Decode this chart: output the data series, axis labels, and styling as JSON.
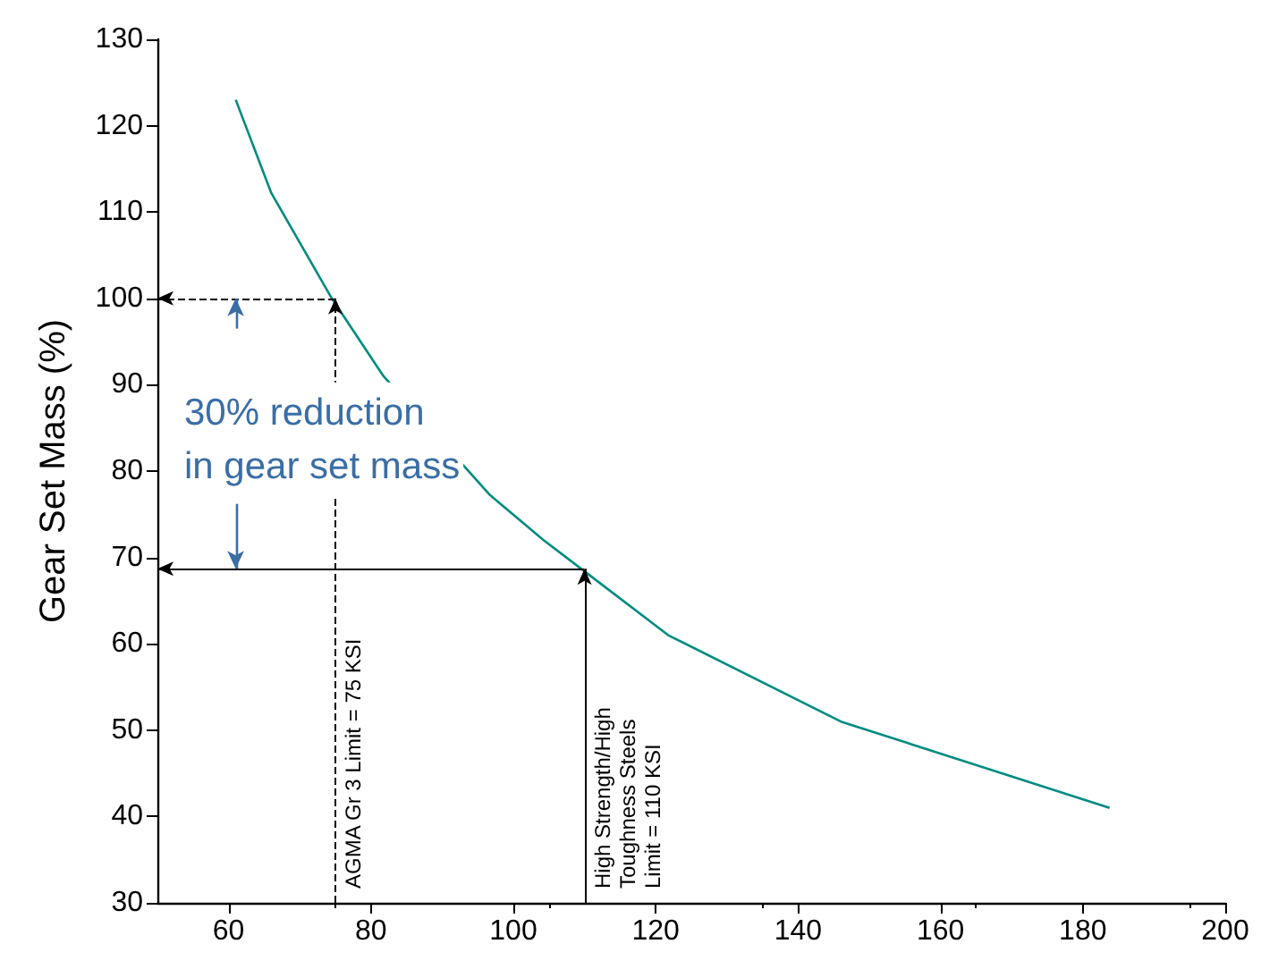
{
  "chart_data": {
    "type": "line",
    "ylabel": "Gear Set Mass (%)",
    "x": [
      61,
      66,
      74.5,
      81.75,
      96.75,
      104.25,
      109.5,
      121.75,
      146,
      183.75
    ],
    "series": [
      {
        "color": "#008b80",
        "values": [
          123,
          112.2,
          100,
          91,
          77.2,
          72,
          68.7,
          61,
          51,
          41
        ]
      }
    ],
    "xlim": [
      50,
      200
    ],
    "xticks": [
      60,
      80,
      100,
      120,
      140,
      160,
      180,
      200
    ],
    "ylim": [
      30,
      130
    ],
    "yticks": [
      30,
      40,
      50,
      60,
      70,
      80,
      90,
      100,
      110,
      120,
      130
    ],
    "grid": false,
    "marker": "none",
    "line_style": "solid",
    "annotations": [
      {
        "text": "AGMA Gr 3 Limit = 75 KSI",
        "x": 75,
        "y": 100
      },
      {
        "text": "High Strength/High\nToughness Steels\nLimit = 110 KSI",
        "x": 110,
        "y": 68.7
      },
      "30% reduction\nin gear set mass"
    ]
  }
}
